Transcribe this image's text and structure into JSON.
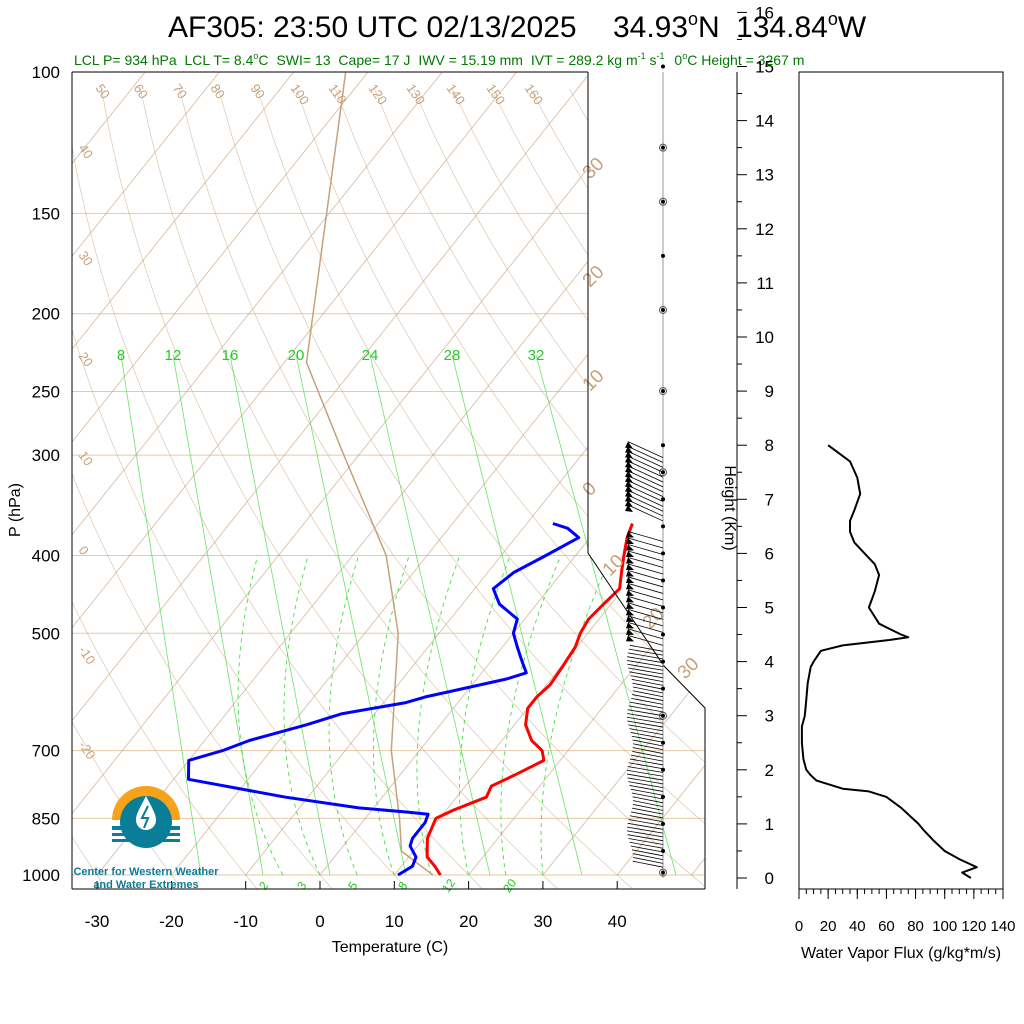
{
  "title": {
    "main": "AF305: 23:50 UTC 02/13/2025",
    "lat": "34.93",
    "lat_dir": "N",
    "lon": "134.84",
    "lon_dir": "W",
    "deg": "o"
  },
  "stats": {
    "lcl_p": "LCL P= 934 hPa",
    "lcl_t": "LCL T= 8.4",
    "lcl_t_unit": "C",
    "swi": "SWI= 13",
    "cape": "Cape= 17 J",
    "iwv": "IWV = 15.19 mm",
    "ivt": "IVT = 289.2 kg m",
    "ivt_sup1": "-1",
    "ivt_s": " s",
    "ivt_sup2": "-1",
    "zero_height": "0",
    "zero_height_rest": "C Height = 3267 m",
    "color": "#007a00"
  },
  "logo": {
    "line1": "Center for Western Weather",
    "line2": "and Water Extremes",
    "colors": {
      "sun": "#f6a21a",
      "water": "#0a7d99"
    }
  },
  "colors": {
    "temperature": "#ff0000",
    "dewpoint": "#0000ff",
    "isotherm": "#c8a07a",
    "mixing_ratio": "#44dd44",
    "parcel": "#c8a07a",
    "wind": "#000000",
    "flux": "#000000"
  },
  "chart_data": [
    {
      "type": "line",
      "title": "Skew-T log-P",
      "xlabel": "Temperature (C)",
      "ylabel": "P (hPa)",
      "xlim": [
        -33,
        52
      ],
      "x_ticks": [
        -30,
        -20,
        -10,
        0,
        10,
        20,
        30,
        40
      ],
      "ylim": [
        1000,
        100
      ],
      "y_ticks": [
        100,
        150,
        200,
        250,
        300,
        400,
        500,
        700,
        850,
        1000
      ],
      "isotherm_labels": [
        -40,
        -30,
        -20,
        -10,
        0,
        10,
        20,
        30
      ],
      "isotherm_top_labels": [
        50,
        60,
        70,
        80,
        90,
        100,
        110,
        120,
        130,
        140,
        150,
        160
      ],
      "mixing_ratio_top_labels": [
        8,
        12,
        16,
        20,
        24,
        28,
        32
      ],
      "mixing_ratio_bottom_labels": [
        2,
        3,
        5,
        8,
        12,
        20
      ],
      "series": [
        {
          "name": "temperature",
          "p": [
            1000,
            975,
            950,
            925,
            900,
            875,
            850,
            830,
            800,
            775,
            750,
            720,
            700,
            680,
            650,
            620,
            600,
            580,
            550,
            520,
            500,
            480,
            460,
            440,
            420,
            400,
            380,
            365
          ],
          "t": [
            16.2,
            14.5,
            12.5,
            11.5,
            10.5,
            10,
            9.5,
            11,
            14,
            13.5,
            15.5,
            17.8,
            16.5,
            14,
            11.5,
            10,
            10,
            10.5,
            10.2,
            9.8,
            9,
            8.6,
            9,
            9.5,
            8,
            6.5,
            5,
            4.2
          ]
        },
        {
          "name": "dewpoint",
          "p": [
            1000,
            975,
            950,
            920,
            900,
            880,
            860,
            840,
            835,
            825,
            800,
            760,
            720,
            700,
            680,
            650,
            630,
            610,
            600,
            590,
            570,
            560,
            540,
            520,
            500,
            480,
            460,
            440,
            420,
            400,
            380,
            370,
            365
          ],
          "t": [
            10.5,
            11.5,
            11,
            9,
            8.5,
            8.5,
            8.5,
            8,
            5,
            -2,
            -13,
            -28,
            -30,
            -26.5,
            -24,
            -18,
            -14.5,
            -7,
            -5,
            -2,
            4,
            6,
            4,
            2,
            0,
            -1,
            -5,
            -7.5,
            -6.5,
            -4,
            -1.5,
            -4,
            -6.5
          ]
        },
        {
          "name": "parcel",
          "p": [
            1000,
            934,
            850,
            700,
            500,
            400,
            300,
            230,
            100
          ],
          "t": [
            15.2,
            8.4,
            4.6,
            -3.8,
            -15.5,
            -25.5,
            -42,
            -57,
            -83
          ]
        }
      ]
    },
    {
      "type": "line",
      "title": "Water Vapor Flux profile",
      "xlabel": "Water Vapor Flux (g/kg*m/s)",
      "ylabel": "Height (Km)",
      "xlim": [
        0,
        140
      ],
      "x_ticks": [
        0,
        20,
        40,
        60,
        80,
        100,
        120,
        140
      ],
      "ylim": [
        0,
        16.3
      ],
      "y_ticks": [
        0,
        1,
        2,
        3,
        4,
        5,
        6,
        7,
        8,
        9,
        10,
        11,
        12,
        13,
        14,
        15,
        16
      ],
      "series": [
        {
          "name": "flux",
          "height_km": [
            0.0,
            0.1,
            0.2,
            0.25,
            0.35,
            0.5,
            0.7,
            0.9,
            1.0,
            1.1,
            1.3,
            1.5,
            1.6,
            1.65,
            1.8,
            1.9,
            2.0,
            2.2,
            2.5,
            2.8,
            3.0,
            3.3,
            3.6,
            3.9,
            4.0,
            4.2,
            4.3,
            4.4,
            4.45,
            4.5,
            4.7,
            5.0,
            5.3,
            5.6,
            5.8,
            6.0,
            6.2,
            6.4,
            6.6,
            6.8,
            7.1,
            7.4,
            7.7,
            7.9,
            8.0
          ],
          "flux": [
            118,
            112,
            122,
            118,
            110,
            100,
            92,
            85,
            82,
            78,
            70,
            60,
            48,
            30,
            12,
            8,
            5,
            3,
            2,
            2,
            4,
            5,
            6,
            8,
            10,
            15,
            30,
            62,
            75,
            70,
            55,
            48,
            52,
            55,
            52,
            45,
            38,
            35,
            35,
            38,
            42,
            40,
            35,
            25,
            20
          ]
        }
      ]
    },
    {
      "type": "scatter",
      "title": "Wind barbs",
      "marker_rows_km": [
        0.1,
        0.5,
        1.0,
        1.5,
        2.0,
        2.5,
        3.0,
        3.5,
        4.0,
        4.5,
        5.0,
        5.5,
        6.0,
        6.5,
        7.0,
        7.5,
        8.0,
        9.0,
        10.5,
        11.5,
        12.5,
        13.5,
        15.0
      ]
    }
  ]
}
